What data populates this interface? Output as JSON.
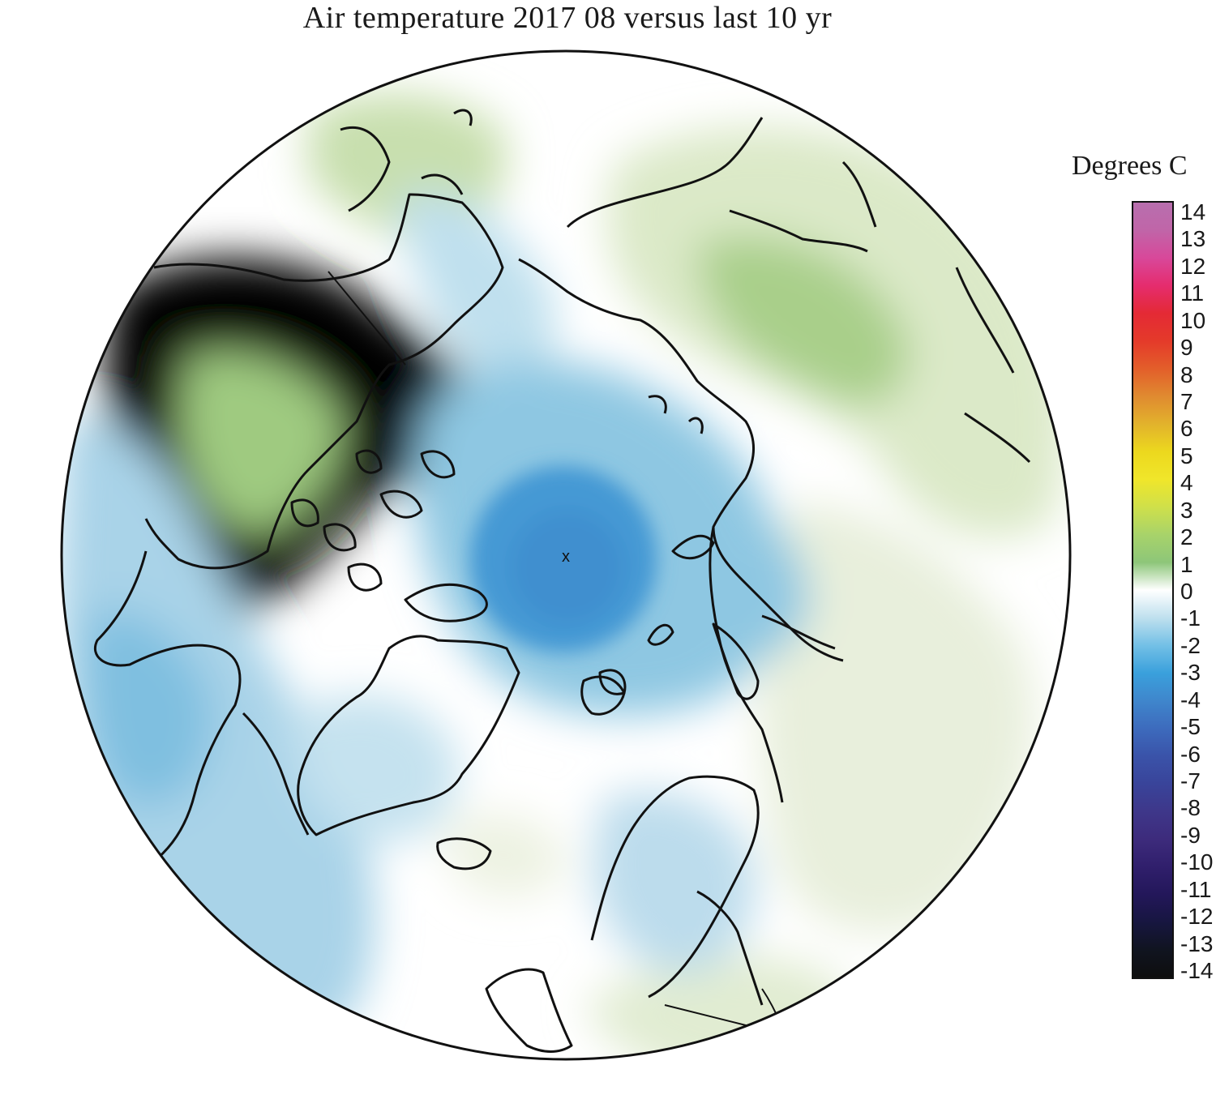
{
  "title": "Air temperature 2017 08 versus last 10 yr",
  "map": {
    "projection": "north polar stereographic",
    "pole_marker": "x",
    "colors": {
      "ocean_cold_core": "#4499d4",
      "cold_mid": "#8ec7e2",
      "cold_light": "#c6e3ef",
      "neutral": "#ffffff",
      "warm_light": "#e6efd6",
      "warm_mid": "#c9dfae",
      "warm_core": "#9ec97e",
      "coastline": "#111111"
    }
  },
  "colorbar": {
    "title": "Degrees C",
    "ticks": [
      "14",
      "13",
      "12",
      "11",
      "10",
      "9",
      "8",
      "7",
      "6",
      "5",
      "4",
      "3",
      "2",
      "1",
      "0",
      "-1",
      "-2",
      "-3",
      "-4",
      "-5",
      "-6",
      "-7",
      "-8",
      "-9",
      "-10",
      "-11",
      "-12",
      "-13",
      "-14"
    ],
    "gradient": [
      "#b86fae",
      "#c065a8",
      "#d8489a",
      "#e52c6e",
      "#e42a35",
      "#e43a2a",
      "#e35e2a",
      "#e08a30",
      "#e2b22c",
      "#ecd81e",
      "#f0e62a",
      "#cfe04a",
      "#a8d36a",
      "#8dc679",
      "#ffffff",
      "#bfe0ee",
      "#73c0e6",
      "#3aa0dc",
      "#3f86cc",
      "#3d6bbd",
      "#3a53a9",
      "#39449a",
      "#3e378a",
      "#3d2b7c",
      "#301f6c",
      "#23175a",
      "#171640",
      "#101420",
      "#0e0e0e"
    ]
  }
}
